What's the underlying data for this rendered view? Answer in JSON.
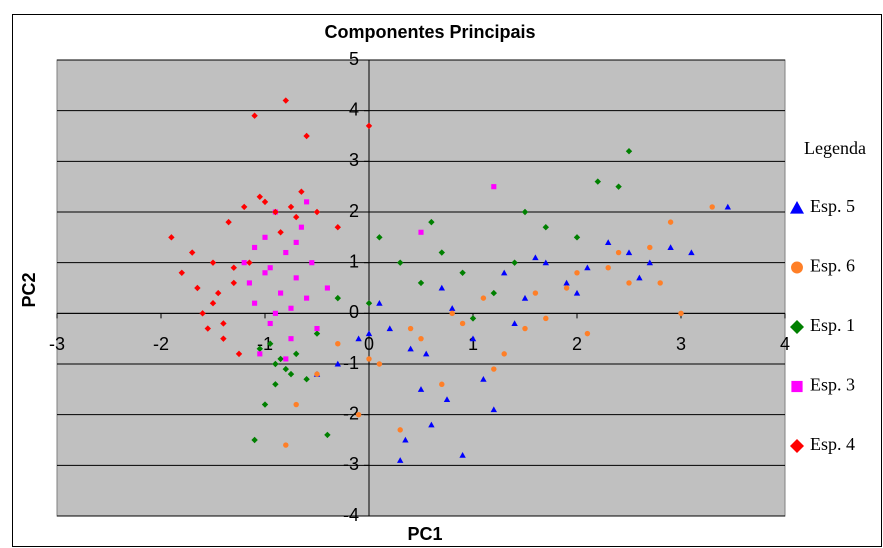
{
  "chart_data": {
    "type": "scatter",
    "title": "Componentes Principais",
    "x_label": "PC1",
    "y_label": "PC2",
    "legend_title": "Legenda",
    "legend_position": "right",
    "grid": true,
    "plot_background": "#c0c0c0",
    "xlim": [
      -3,
      4
    ],
    "xticks": [
      -3,
      -2,
      -1,
      0,
      1,
      2,
      3,
      4
    ],
    "ylim": [
      -4,
      5
    ],
    "yticks": [
      -4,
      -3,
      -2,
      -1,
      0,
      1,
      2,
      3,
      4,
      5
    ],
    "series": [
      {
        "name": "Esp. 5",
        "color": "#0000ff",
        "marker": "triangle",
        "x": [
          -0.3,
          -0.1,
          0.1,
          0.3,
          0.5,
          0.7,
          0.9,
          1.1,
          1.3,
          1.5,
          1.7,
          1.9,
          2.1,
          2.3,
          2.5,
          2.7,
          2.9,
          3.1,
          3.45,
          0.2,
          0.4,
          0.6,
          0.8,
          1.0,
          1.2,
          -0.5,
          0.35,
          0.55,
          1.4,
          2.0,
          2.6,
          0.0,
          0.75,
          1.6
        ],
        "values": [
          -1.0,
          -0.5,
          0.2,
          -2.9,
          -1.5,
          0.5,
          -2.8,
          -1.3,
          0.8,
          0.3,
          1.0,
          0.6,
          0.9,
          1.4,
          1.2,
          1.0,
          1.3,
          1.2,
          2.1,
          -0.3,
          -0.7,
          -2.2,
          0.1,
          -0.5,
          -1.9,
          -1.2,
          -2.5,
          -0.8,
          -0.2,
          0.4,
          0.7,
          -0.4,
          -1.7,
          1.1
        ]
      },
      {
        "name": "Esp. 6",
        "color": "#ff7f27",
        "marker": "circle",
        "x": [
          -0.8,
          -0.5,
          -0.3,
          -0.1,
          0.1,
          0.3,
          0.5,
          0.7,
          0.9,
          1.1,
          1.3,
          1.5,
          1.7,
          1.9,
          2.1,
          2.3,
          2.5,
          2.7,
          2.9,
          3.0,
          3.3,
          -0.7,
          0.0,
          0.4,
          0.8,
          1.2,
          1.6,
          2.0,
          2.4,
          2.8
        ],
        "values": [
          -2.6,
          -1.2,
          -0.6,
          -2.0,
          -1.0,
          -2.3,
          -0.5,
          -1.4,
          -0.2,
          0.3,
          -0.8,
          -0.3,
          -0.1,
          0.5,
          -0.4,
          0.9,
          0.6,
          1.3,
          1.8,
          0.0,
          2.1,
          -1.8,
          -0.9,
          -0.3,
          0.0,
          -1.1,
          0.4,
          0.8,
          1.2,
          0.6
        ]
      },
      {
        "name": "Esp. 1",
        "color": "#008000",
        "marker": "diamond",
        "x": [
          -1.1,
          -1.0,
          -0.9,
          -0.8,
          -0.7,
          -0.6,
          -0.5,
          -0.85,
          -0.75,
          -1.05,
          -0.4,
          -0.3,
          0.1,
          0.3,
          0.5,
          0.7,
          0.9,
          1.2,
          1.5,
          1.7,
          2.0,
          2.2,
          2.5,
          0.0,
          0.6,
          -0.9,
          1.0,
          1.4,
          2.4,
          -0.95
        ],
        "values": [
          -2.5,
          -1.8,
          -1.0,
          -1.1,
          -0.8,
          -1.3,
          -0.4,
          -0.9,
          -1.2,
          -0.7,
          -2.4,
          0.3,
          1.5,
          1.0,
          0.6,
          1.2,
          0.8,
          0.4,
          2.0,
          1.7,
          1.5,
          2.6,
          3.2,
          0.2,
          1.8,
          -1.4,
          -0.1,
          1.0,
          2.5,
          -0.6
        ]
      },
      {
        "name": "Esp. 3",
        "color": "#ff00ff",
        "marker": "square",
        "x": [
          -1.2,
          -1.15,
          -1.1,
          -1.05,
          -1.0,
          -0.95,
          -0.9,
          -0.85,
          -0.8,
          -0.75,
          -0.7,
          -0.65,
          -0.6,
          -0.55,
          -0.5,
          -0.4,
          -1.1,
          -0.9,
          -0.7,
          -0.6,
          -0.8,
          -1.0,
          0.5,
          1.2,
          -0.95,
          -0.75
        ],
        "values": [
          1.0,
          0.6,
          0.2,
          -0.8,
          1.5,
          0.9,
          2.0,
          0.4,
          1.2,
          -0.5,
          0.7,
          1.7,
          0.3,
          1.0,
          -0.3,
          0.5,
          1.3,
          0.0,
          1.4,
          2.2,
          -0.9,
          0.8,
          1.6,
          2.5,
          -0.2,
          0.1
        ]
      },
      {
        "name": "Esp. 4",
        "color": "#ff0000",
        "marker": "diamond",
        "x": [
          -1.9,
          -1.8,
          -1.7,
          -1.65,
          -1.6,
          -1.55,
          -1.5,
          -1.45,
          -1.4,
          -1.35,
          -1.3,
          -1.25,
          -1.2,
          -1.15,
          -1.1,
          -1.0,
          -0.9,
          -0.8,
          -0.7,
          -0.65,
          -0.6,
          -0.5,
          -1.05,
          -0.85,
          -0.75,
          -0.3,
          0.0,
          -1.5,
          -1.4,
          -1.3
        ],
        "values": [
          1.5,
          0.8,
          1.2,
          0.5,
          0.0,
          -0.3,
          1.0,
          0.4,
          -0.5,
          1.8,
          0.6,
          -0.8,
          2.1,
          1.0,
          3.9,
          2.2,
          2.0,
          4.2,
          1.9,
          2.4,
          3.5,
          2.0,
          2.3,
          1.6,
          2.1,
          1.7,
          3.7,
          0.2,
          -0.2,
          0.9
        ]
      }
    ]
  }
}
